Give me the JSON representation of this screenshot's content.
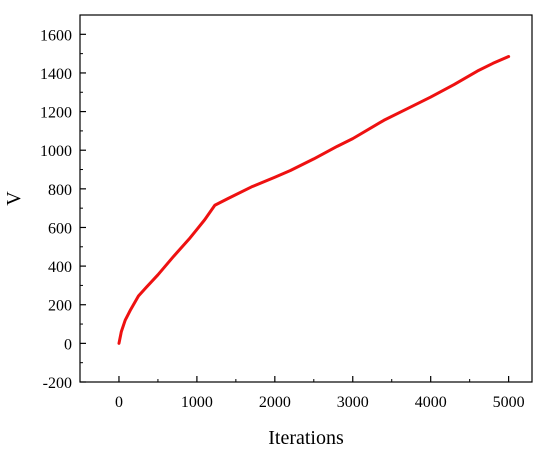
{
  "chart_data": {
    "type": "line",
    "title": "",
    "xlabel": "Iterations",
    "ylabel": "V",
    "xlim": [
      -500,
      5300
    ],
    "ylim": [
      -200,
      1700
    ],
    "x_ticks": [
      0,
      1000,
      2000,
      3000,
      4000,
      5000
    ],
    "y_ticks": [
      -200,
      0,
      200,
      400,
      600,
      800,
      1000,
      1200,
      1400,
      1600
    ],
    "x_tick_labels": [
      "0",
      "1000",
      "2000",
      "3000",
      "4000",
      "5000"
    ],
    "y_tick_labels": [
      "-200",
      "0",
      "200",
      "400",
      "600",
      "800",
      "1000",
      "1200",
      "1400",
      "1600"
    ],
    "grid": false,
    "legend": "none",
    "series": [
      {
        "color": "#ee1111",
        "x": [
          0,
          30,
          80,
          150,
          250,
          350,
          500,
          700,
          900,
          1000,
          1100,
          1230,
          1400,
          1700,
          2000,
          2200,
          2500,
          2800,
          3000,
          3400,
          3700,
          4000,
          4300,
          4600,
          4800,
          5000
        ],
        "y": [
          0,
          60,
          120,
          175,
          245,
          290,
          355,
          450,
          540,
          590,
          640,
          715,
          750,
          810,
          860,
          895,
          955,
          1020,
          1060,
          1155,
          1215,
          1275,
          1340,
          1410,
          1450,
          1485
        ]
      }
    ]
  }
}
